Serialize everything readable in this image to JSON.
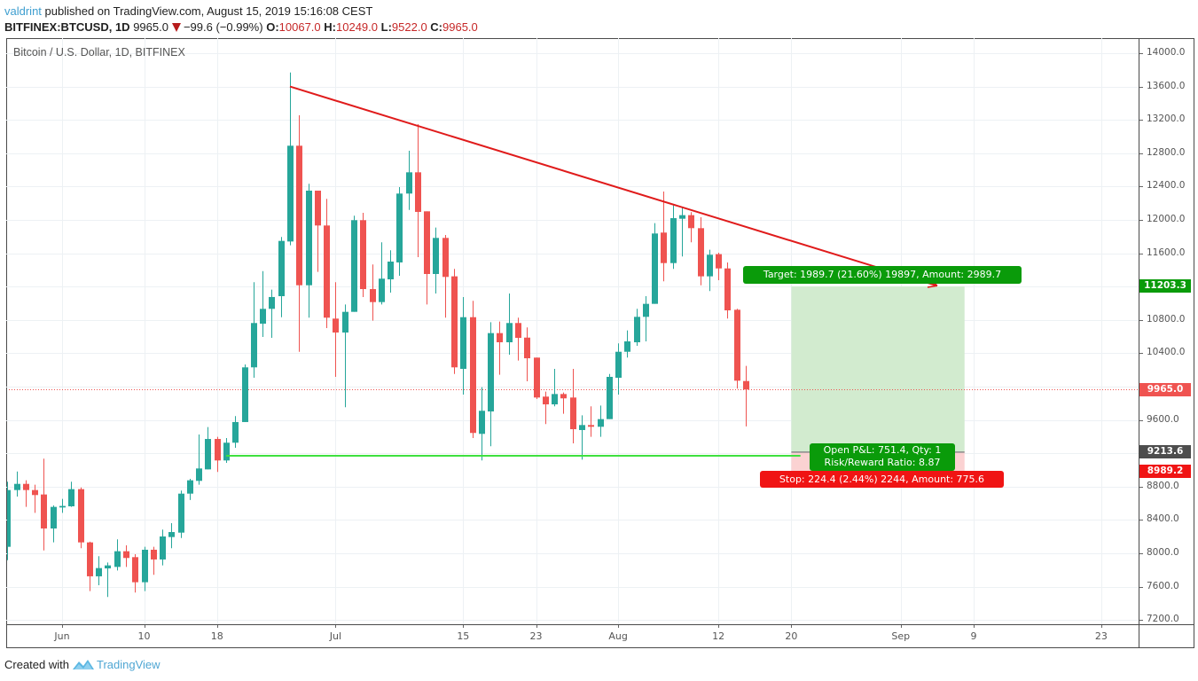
{
  "header": {
    "author": "valdrint",
    "published_text": " published on TradingView.com, August 15, 2019 15:16:08 CEST",
    "symbol": "BITFINEX:BTCUSD, 1D",
    "last_price": "9965.0",
    "direction_icon": "down-triangle-icon",
    "change": "−99.6 (−0.99%)",
    "ohlc": [
      {
        "key": "O:",
        "value": "10067.0"
      },
      {
        "key": "H:",
        "value": "10249.0"
      },
      {
        "key": "L:",
        "value": "9522.0"
      },
      {
        "key": "C:",
        "value": "9965.0"
      }
    ]
  },
  "chart": {
    "legend": "Bitcoin / U.S. Dollar, 1D, BITFINEX"
  },
  "position": {
    "target_label": "Target: 1989.7 (21.60%) 19897, Amount: 2989.7",
    "pnl_label_line1": "Open P&L: 751.4, Qty: 1",
    "pnl_label_line2": "Risk/Reward Ratio: 8.87",
    "stop_label": "Stop: 224.4 (2.44%) 2244, Amount: 775.6"
  },
  "footer": {
    "created_with": "Created with",
    "logo_icon": "tradingview-logo-icon",
    "brand": "TradingView"
  },
  "colors": {
    "up": "#26a69a",
    "down": "#ef5350",
    "grid": "#edf1f4",
    "trend_line": "#e01b1b",
    "support_line": "#3fe03f",
    "target_fill": "#d2ebcf",
    "stop_fill": "#fbd2d2",
    "entry_line": "#8a8a8a",
    "target_label_bg": "#0a9b0a",
    "stop_label_bg": "#f01414",
    "last_price_line": "#ef5350"
  },
  "chart_data": {
    "type": "bar",
    "style": "candlestick",
    "title": "Bitcoin / U.S. Dollar, 1D, BITFINEX",
    "xlabel": "",
    "ylabel": "",
    "ylim": [
      7149,
      14181
    ],
    "grid": true,
    "y_grid": {
      "min": 7200,
      "max": 14000,
      "step": 400
    },
    "y_ticks": [
      "14000.0",
      "13600.0",
      "13200.0",
      "12800.0",
      "12400.0",
      "12000.0",
      "11600.0",
      "10800.0",
      "10400.0",
      "9600.0",
      "8800.0",
      "8400.0",
      "8000.0",
      "7600.0",
      "7200.0"
    ],
    "x_ticks": [
      {
        "label": "Jun",
        "date": "2019-06-01"
      },
      {
        "label": "10",
        "date": "2019-06-10"
      },
      {
        "label": "18",
        "date": "2019-06-18"
      },
      {
        "label": "Jul",
        "date": "2019-07-01"
      },
      {
        "label": "15",
        "date": "2019-07-15"
      },
      {
        "label": "23",
        "date": "2019-07-23"
      },
      {
        "label": "Aug",
        "date": "2019-08-01"
      },
      {
        "label": "12",
        "date": "2019-08-12"
      },
      {
        "label": "20",
        "date": "2019-08-20"
      },
      {
        "label": "Sep",
        "date": "2019-09-01"
      },
      {
        "label": "9",
        "date": "2019-09-09"
      },
      {
        "label": "23",
        "date": "2019-09-23"
      }
    ],
    "columns": [
      "date",
      "open",
      "high",
      "low",
      "close"
    ],
    "candles": [
      [
        "2019-05-26",
        8078,
        8859,
        7918,
        8759
      ],
      [
        "2019-05-27",
        8759,
        8982,
        8681,
        8833
      ],
      [
        "2019-05-28",
        8833,
        8876,
        8557,
        8759
      ],
      [
        "2019-05-29",
        8759,
        8823,
        8486,
        8699
      ],
      [
        "2019-05-30",
        8706,
        9135,
        8035,
        8298
      ],
      [
        "2019-05-31",
        8298,
        8575,
        8131,
        8557
      ],
      [
        "2019-06-01",
        8550,
        8653,
        8486,
        8568
      ],
      [
        "2019-06-02",
        8564,
        8859,
        8557,
        8770
      ],
      [
        "2019-06-03",
        8770,
        8790,
        8061,
        8131
      ],
      [
        "2019-06-04",
        8131,
        8140,
        7546,
        7724
      ],
      [
        "2019-06-05",
        7724,
        7965,
        7617,
        7823
      ],
      [
        "2019-06-06",
        7819,
        7890,
        7476,
        7855
      ],
      [
        "2019-06-07",
        7837,
        8167,
        7794,
        8025
      ],
      [
        "2019-06-08",
        8025,
        8096,
        7837,
        7944
      ],
      [
        "2019-06-09",
        7954,
        7990,
        7529,
        7653
      ],
      [
        "2019-06-10",
        7653,
        8078,
        7546,
        8043
      ],
      [
        "2019-06-11",
        8043,
        8078,
        7742,
        7926
      ],
      [
        "2019-06-12",
        7926,
        8284,
        7855,
        8202
      ],
      [
        "2019-06-13",
        8195,
        8362,
        8061,
        8255
      ],
      [
        "2019-06-14",
        8248,
        8752,
        8184,
        8716
      ],
      [
        "2019-06-15",
        8716,
        8894,
        8639,
        8876
      ],
      [
        "2019-06-16",
        8869,
        9426,
        8823,
        9018
      ],
      [
        "2019-06-17",
        9007,
        9514,
        9007,
        9372
      ],
      [
        "2019-06-18",
        9372,
        9397,
        8976,
        9114
      ],
      [
        "2019-06-19",
        9114,
        9383,
        9085,
        9327
      ],
      [
        "2019-06-20",
        9327,
        9646,
        9266,
        9575
      ],
      [
        "2019-06-21",
        9575,
        10266,
        9575,
        10231
      ],
      [
        "2019-06-22",
        10231,
        11252,
        10107,
        10763
      ],
      [
        "2019-06-23",
        10755,
        11386,
        10596,
        10933
      ],
      [
        "2019-06-24",
        10933,
        11163,
        10585,
        11075
      ],
      [
        "2019-06-25",
        11085,
        11795,
        10833,
        11748
      ],
      [
        "2019-06-26",
        11741,
        13769,
        11695,
        12890
      ],
      [
        "2019-06-27",
        12890,
        13255,
        10418,
        11216
      ],
      [
        "2019-06-28",
        11216,
        12433,
        10827,
        12351
      ],
      [
        "2019-06-29",
        12351,
        12351,
        11376,
        11933
      ],
      [
        "2019-06-30",
        11933,
        12252,
        10702,
        10827
      ],
      [
        "2019-07-01",
        10816,
        11252,
        10117,
        10649
      ],
      [
        "2019-07-02",
        10649,
        10986,
        9752,
        10897
      ],
      [
        "2019-07-03",
        10897,
        12050,
        10897,
        11997
      ],
      [
        "2019-07-04",
        11997,
        12085,
        11075,
        11170
      ],
      [
        "2019-07-05",
        11170,
        11465,
        10791,
        11014
      ],
      [
        "2019-07-06",
        11014,
        11731,
        10986,
        11295
      ],
      [
        "2019-07-07",
        11287,
        11635,
        11128,
        11500
      ],
      [
        "2019-07-08",
        11490,
        12394,
        11330,
        12316
      ],
      [
        "2019-07-09",
        12316,
        12830,
        12120,
        12571
      ],
      [
        "2019-07-10",
        12571,
        13149,
        11553,
        12096
      ],
      [
        "2019-07-11",
        12103,
        12103,
        10986,
        11351
      ],
      [
        "2019-07-12",
        11351,
        11908,
        11117,
        11784
      ],
      [
        "2019-07-13",
        11784,
        11819,
        10827,
        11316
      ],
      [
        "2019-07-14",
        11323,
        11412,
        10152,
        10231
      ],
      [
        "2019-07-15",
        10213,
        11075,
        9904,
        10833
      ],
      [
        "2019-07-16",
        10833,
        11029,
        9383,
        9444
      ],
      [
        "2019-07-17",
        9433,
        9993,
        9114,
        9710
      ],
      [
        "2019-07-18",
        9702,
        10773,
        9284,
        10642
      ],
      [
        "2019-07-19",
        10642,
        10780,
        10142,
        10532
      ],
      [
        "2019-07-20",
        10532,
        11117,
        10383,
        10763
      ],
      [
        "2019-07-21",
        10763,
        10827,
        10312,
        10585
      ],
      [
        "2019-07-22",
        10588,
        10710,
        10064,
        10340
      ],
      [
        "2019-07-23",
        10348,
        10348,
        9851,
        9869
      ],
      [
        "2019-07-24",
        9880,
        9940,
        9550,
        9787
      ],
      [
        "2019-07-25",
        9787,
        10213,
        9763,
        9911
      ],
      [
        "2019-07-26",
        9911,
        9930,
        9674,
        9859
      ],
      [
        "2019-07-27",
        9869,
        10213,
        9319,
        9489
      ],
      [
        "2019-07-28",
        9479,
        9656,
        9124,
        9539
      ],
      [
        "2019-07-29",
        9539,
        9763,
        9397,
        9518
      ],
      [
        "2019-07-30",
        9518,
        9773,
        9397,
        9610
      ],
      [
        "2019-07-31",
        9610,
        10152,
        9610,
        10117
      ],
      [
        "2019-08-01",
        10106,
        10518,
        9904,
        10418
      ],
      [
        "2019-08-02",
        10418,
        10674,
        10348,
        10543
      ],
      [
        "2019-08-03",
        10532,
        10933,
        10490,
        10837
      ],
      [
        "2019-08-04",
        10837,
        11085,
        10543,
        10993
      ],
      [
        "2019-08-05",
        10993,
        11961,
        10993,
        11837
      ],
      [
        "2019-08-06",
        11848,
        12340,
        11263,
        11482
      ],
      [
        "2019-08-07",
        11482,
        12174,
        11412,
        12021
      ],
      [
        "2019-08-08",
        12014,
        12156,
        11561,
        12057
      ],
      [
        "2019-08-09",
        12057,
        12093,
        11731,
        11901
      ],
      [
        "2019-08-10",
        11901,
        12032,
        11216,
        11323
      ],
      [
        "2019-08-11",
        11323,
        11642,
        11146,
        11582
      ],
      [
        "2019-08-12",
        11589,
        11606,
        11277,
        11418
      ],
      [
        "2019-08-13",
        11418,
        11489,
        10816,
        10915
      ],
      [
        "2019-08-14",
        10922,
        10933,
        9976,
        10071
      ],
      [
        "2019-08-15",
        10067,
        10249,
        9522,
        9965
      ]
    ],
    "last_price": 9965.0,
    "annotations": {
      "trend_line": {
        "start": {
          "date": "2019-06-26",
          "price": 13600
        },
        "end": {
          "date": "2019-09-05",
          "price": 11210
        },
        "arrow": true
      },
      "support_line": {
        "price": 9170,
        "start_date": "2019-06-19",
        "end_date": "2019-08-21"
      },
      "long_position": {
        "start_date": "2019-08-20",
        "end_date": "2019-09-08",
        "entry": 9213.6,
        "target": 11203.3,
        "stop": 8989.2
      }
    },
    "price_badges": [
      {
        "role": "target",
        "label": "11203.3",
        "price": 11203.3,
        "bg": "#0a9b0a"
      },
      {
        "role": "last-price",
        "label": "9965.0",
        "price": 9965.0,
        "bg": "#ef5350"
      },
      {
        "role": "entry",
        "label": "9213.6",
        "price": 9213.6,
        "bg": "#4d4d4d"
      },
      {
        "role": "stop",
        "label": "8989.2",
        "price": 8989.2,
        "bg": "#f01414"
      }
    ]
  }
}
